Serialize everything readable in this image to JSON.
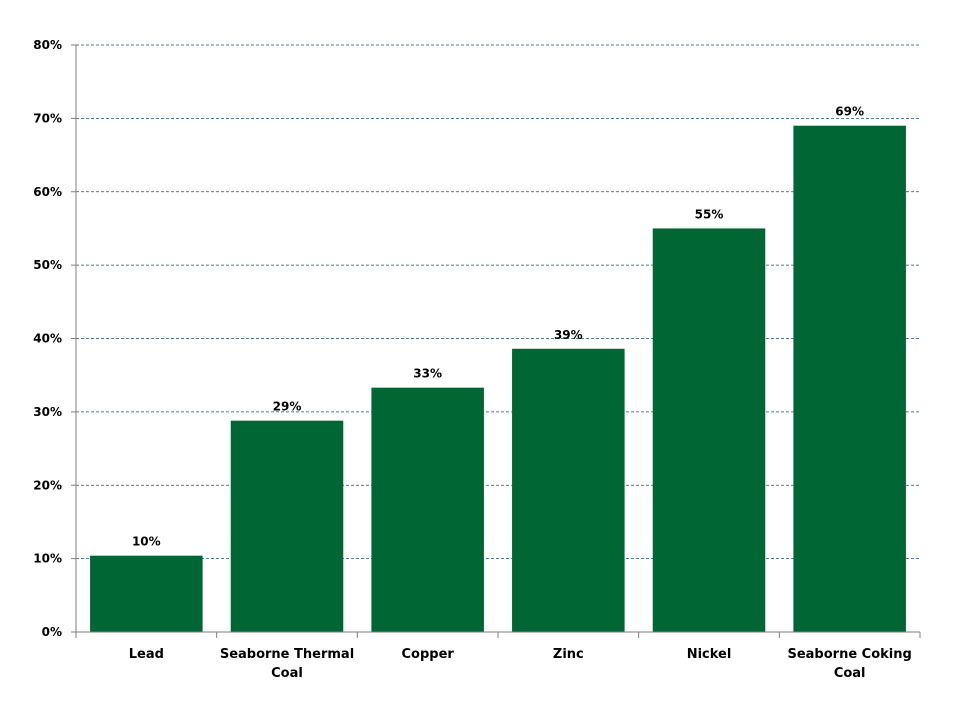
{
  "chart_data": {
    "type": "bar",
    "title": "",
    "xlabel": "",
    "ylabel": "",
    "categories": [
      "Lead",
      "Seaborne Thermal Coal",
      "Copper",
      "Zinc",
      "Nickel",
      "Seaborne Coking Coal"
    ],
    "category_lines": [
      [
        "Lead"
      ],
      [
        "Seaborne Thermal",
        "Coal"
      ],
      [
        "Copper"
      ],
      [
        "Zinc"
      ],
      [
        "Nickel"
      ],
      [
        "Seaborne Coking",
        "Coal"
      ]
    ],
    "values": [
      10.4,
      28.8,
      33.3,
      38.6,
      55,
      69
    ],
    "data_labels": [
      "10%",
      "29%",
      "33%",
      "39%",
      "55%",
      "69%"
    ],
    "ylim": [
      0,
      80
    ],
    "yticks": [
      0,
      10,
      20,
      30,
      40,
      50,
      60,
      70,
      80
    ],
    "ytick_labels": [
      "0%",
      "10%",
      "20%",
      "30%",
      "40%",
      "50%",
      "60%",
      "70%",
      "80%"
    ],
    "grid": true,
    "legend": "none",
    "colors": {
      "bar": "#006633"
    }
  }
}
